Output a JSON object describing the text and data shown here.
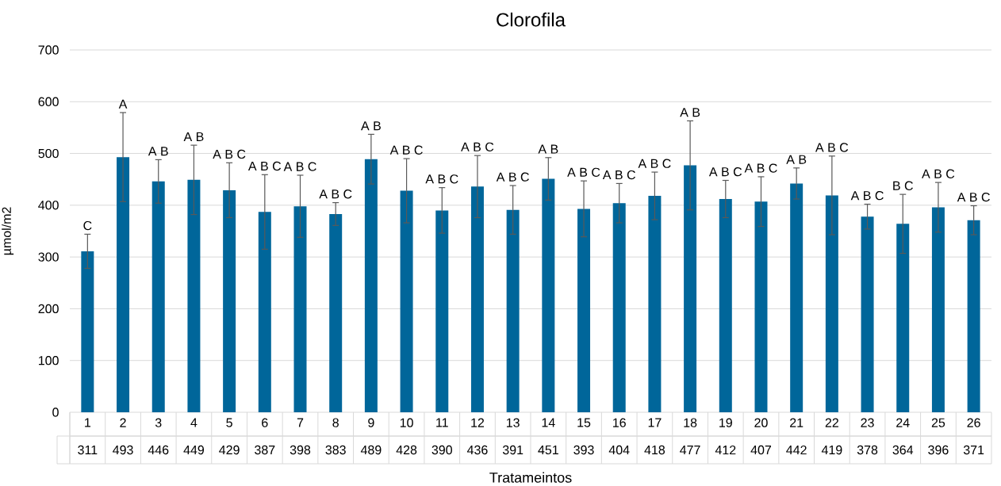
{
  "chart_data": {
    "type": "bar",
    "title": "Clorofila",
    "xlabel": "Tratameintos",
    "ylabel": "µmol/m2",
    "categories": [
      "1",
      "2",
      "3",
      "4",
      "5",
      "6",
      "7",
      "8",
      "9",
      "10",
      "11",
      "12",
      "13",
      "14",
      "15",
      "16",
      "17",
      "18",
      "19",
      "20",
      "21",
      "22",
      "23",
      "24",
      "25",
      "26"
    ],
    "values": [
      311,
      493,
      446,
      449,
      429,
      387,
      398,
      383,
      489,
      428,
      390,
      436,
      391,
      451,
      393,
      404,
      418,
      477,
      412,
      407,
      442,
      419,
      378,
      364,
      396,
      371
    ],
    "errors": [
      33,
      86,
      42,
      67,
      53,
      72,
      60,
      22,
      48,
      62,
      44,
      60,
      47,
      41,
      54,
      38,
      46,
      86,
      36,
      48,
      30,
      76,
      24,
      57,
      48,
      28
    ],
    "color": "#00669a",
    "ylim": [
      0,
      700
    ],
    "yticks": [
      0,
      100,
      200,
      300,
      400,
      500,
      600,
      700
    ],
    "grid": "y",
    "data_labels": true,
    "annotations": [
      {
        "text": "C",
        "x": "1",
        "y": 344
      },
      {
        "text": "A",
        "x": "2",
        "y": 579
      },
      {
        "text": "A B",
        "x": "3",
        "y": 488
      },
      {
        "text": "A B",
        "x": "4",
        "y": 516
      },
      {
        "text": "A B C",
        "x": "5",
        "y": 482
      },
      {
        "text": "A B C",
        "x": "6",
        "y": 459
      },
      {
        "text": "A B C",
        "x": "7",
        "y": 458
      },
      {
        "text": "A B C",
        "x": "8",
        "y": 405
      },
      {
        "text": "A B",
        "x": "9",
        "y": 537
      },
      {
        "text": "A B C",
        "x": "10",
        "y": 490
      },
      {
        "text": "A B C",
        "x": "11",
        "y": 434
      },
      {
        "text": "A B C",
        "x": "12",
        "y": 496
      },
      {
        "text": "A B C",
        "x": "13",
        "y": 438
      },
      {
        "text": "A B",
        "x": "14",
        "y": 492
      },
      {
        "text": "A B C",
        "x": "15",
        "y": 447
      },
      {
        "text": "A B C",
        "x": "16",
        "y": 442
      },
      {
        "text": "A B C",
        "x": "17",
        "y": 464
      },
      {
        "text": "A B",
        "x": "18",
        "y": 563
      },
      {
        "text": "A B C",
        "x": "19",
        "y": 448
      },
      {
        "text": "A B C",
        "x": "20",
        "y": 455
      },
      {
        "text": "A B",
        "x": "21",
        "y": 472
      },
      {
        "text": "A B C",
        "x": "22",
        "y": 495
      },
      {
        "text": "A B C",
        "x": "23",
        "y": 402
      },
      {
        "text": "B C",
        "x": "24",
        "y": 421
      },
      {
        "text": "A B C",
        "x": "25",
        "y": 444
      },
      {
        "text": "A B C",
        "x": "26",
        "y": 399
      }
    ]
  }
}
